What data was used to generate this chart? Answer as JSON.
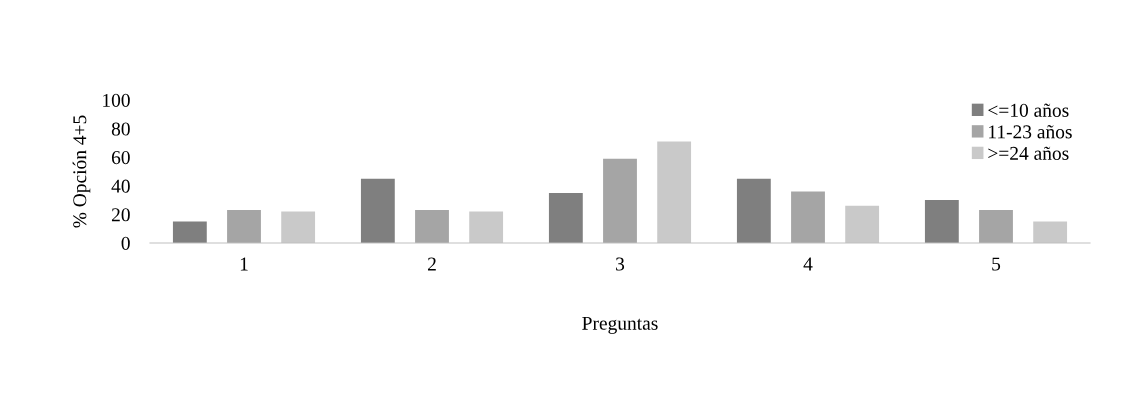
{
  "chart_data": {
    "type": "bar",
    "xlabel": "Preguntas",
    "ylabel": "% Opción 4+5",
    "categories": [
      "1",
      "2",
      "3",
      "4",
      "5"
    ],
    "series": [
      {
        "name": "<=10 años",
        "color": "#7f7f7f",
        "values": [
          15,
          45,
          35,
          45,
          30
        ]
      },
      {
        "name": "11-23 años",
        "color": "#a5a5a5",
        "values": [
          23,
          23,
          59,
          36,
          23
        ]
      },
      {
        "name": ">=24 años",
        "color": "#c9c9c9",
        "values": [
          22,
          22,
          71,
          26,
          15
        ]
      }
    ],
    "ylim": [
      0,
      100
    ],
    "yticks": [
      0,
      20,
      40,
      60,
      80,
      100
    ],
    "grid": false,
    "legend": "top right"
  }
}
